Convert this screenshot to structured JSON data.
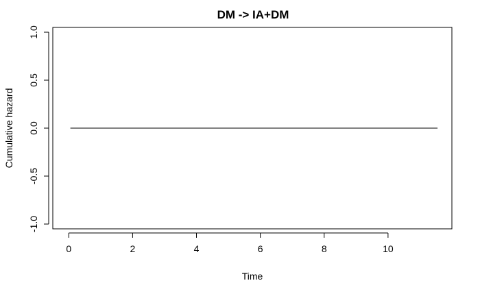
{
  "chart_data": {
    "type": "line",
    "title": "DM -> IA+DM",
    "xlabel": "Time",
    "ylabel": "Cumulative hazard",
    "xlim": [
      -0.5,
      12.0
    ],
    "ylim": [
      -1.05,
      1.05
    ],
    "xticks": [
      0,
      2,
      4,
      6,
      8,
      10
    ],
    "yticks": [
      -1.0,
      -0.5,
      0.0,
      0.5,
      1.0
    ],
    "xtick_labels": [
      "0",
      "2",
      "4",
      "6",
      "8",
      "10"
    ],
    "ytick_labels": [
      "-1.0",
      "-0.5",
      "0.0",
      "0.5",
      "1.0"
    ],
    "series": [
      {
        "x": [
          0.05,
          11.55
        ],
        "values": [
          0.0,
          0.0
        ],
        "color": "#000000"
      }
    ],
    "grid": false
  }
}
